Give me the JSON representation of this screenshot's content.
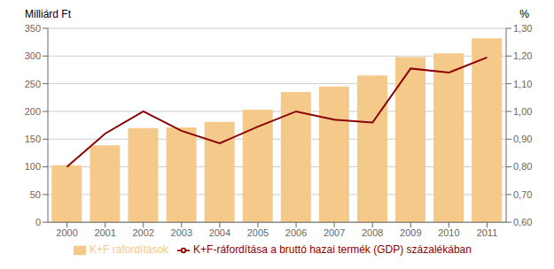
{
  "chart_data": {
    "type": "bar",
    "categories": [
      "2000",
      "2001",
      "2002",
      "2003",
      "2004",
      "2005",
      "2006",
      "2007",
      "2008",
      "2009",
      "2010",
      "2011"
    ],
    "series": [
      {
        "name": "K+F ráfordítások",
        "type": "bar",
        "color": "#F5C98A",
        "values": [
          103,
          139,
          170,
          171,
          181,
          203,
          235,
          245,
          265,
          298,
          305,
          332
        ]
      },
      {
        "name": "K+F-ráfordítása a bruttó hazai termék (GDP) százalékában",
        "type": "line",
        "color": "#8B0000",
        "axis": "y2",
        "values": [
          0.8,
          0.92,
          1.0,
          0.93,
          0.885,
          0.945,
          1.0,
          0.97,
          0.96,
          1.155,
          1.14,
          1.195
        ]
      }
    ],
    "y_label": "Milliárd Ft",
    "y2_label": "%",
    "ylim": [
      0,
      350
    ],
    "yticks": [
      0,
      50,
      100,
      150,
      200,
      250,
      300,
      350
    ],
    "y2lim": [
      0.6,
      1.3
    ],
    "y2ticks": [
      {
        "value": 0.6,
        "label": "0,60"
      },
      {
        "value": 0.7,
        "label": "0,70"
      },
      {
        "value": 0.8,
        "label": "0,80"
      },
      {
        "value": 0.9,
        "label": "0,90"
      },
      {
        "value": 1.0,
        "label": "1,00"
      },
      {
        "value": 1.1,
        "label": "1,10"
      },
      {
        "value": 1.2,
        "label": "1,20"
      },
      {
        "value": 1.3,
        "label": "1,30"
      }
    ],
    "grid": true,
    "legend": "bottom"
  }
}
